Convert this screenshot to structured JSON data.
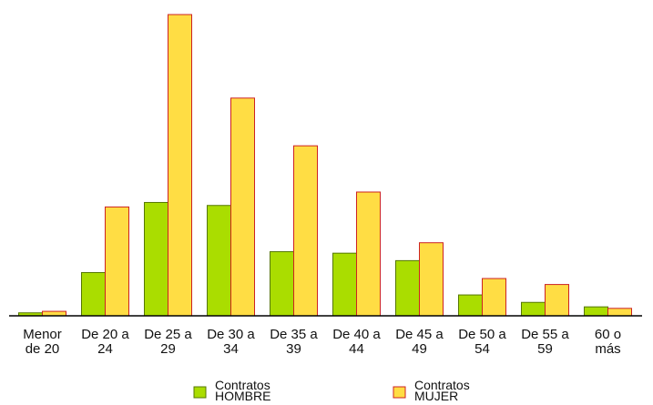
{
  "chart_data": {
    "type": "bar",
    "categories": [
      [
        "Menor",
        "de 20"
      ],
      [
        "De 20 a",
        "24"
      ],
      [
        "De 25 a",
        "29"
      ],
      [
        "De 30 a",
        "34"
      ],
      [
        "De 35 a",
        "39"
      ],
      [
        "De 40 a",
        "44"
      ],
      [
        "De 45 a",
        "49"
      ],
      [
        "De 50 a",
        "54"
      ],
      [
        "De 55 a",
        "59"
      ],
      [
        "60 o",
        "más"
      ]
    ],
    "series": [
      {
        "name": [
          "Contratos",
          "HOMBRE"
        ],
        "color": "#aadd00",
        "stroke": "#557700",
        "values": [
          1,
          14.5,
          38,
          37,
          21.5,
          21,
          18.5,
          7,
          4.5,
          3
        ]
      },
      {
        "name": [
          "Contratos",
          "MUJER"
        ],
        "color": "#ffdd44",
        "stroke": "#cc2222",
        "values": [
          1.5,
          36.5,
          101,
          73,
          57,
          41.5,
          24.5,
          12.5,
          10.5,
          2.5
        ]
      }
    ],
    "ylim": [
      0,
      101
    ],
    "grid": false,
    "legend": "bottom"
  }
}
